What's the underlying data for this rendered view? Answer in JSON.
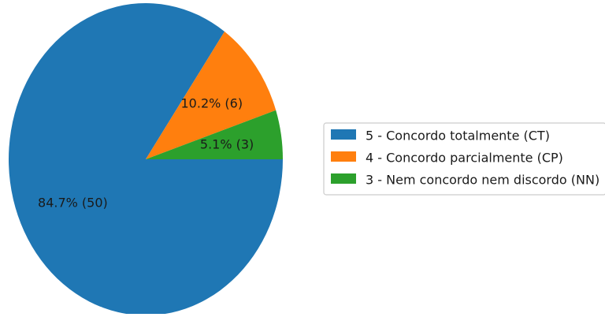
{
  "chart_data": {
    "type": "pie",
    "title": "",
    "slices": [
      {
        "label": "5 - Concordo totalmente (CT)",
        "value": 50,
        "percent_label": "84.7% (50)",
        "color": "#1f77b4"
      },
      {
        "label": "4 - Concordo parcialmente (CP)",
        "value": 6,
        "percent_label": "10.2% (6)",
        "color": "#ff7f0e"
      },
      {
        "label": "3 - Nem concordo nem discordo (NN)",
        "value": 3,
        "percent_label": "5.1% (3)",
        "color": "#2ca02c"
      }
    ],
    "start_angle_deg": 0,
    "direction": "clockwise",
    "legend_position": "right"
  }
}
